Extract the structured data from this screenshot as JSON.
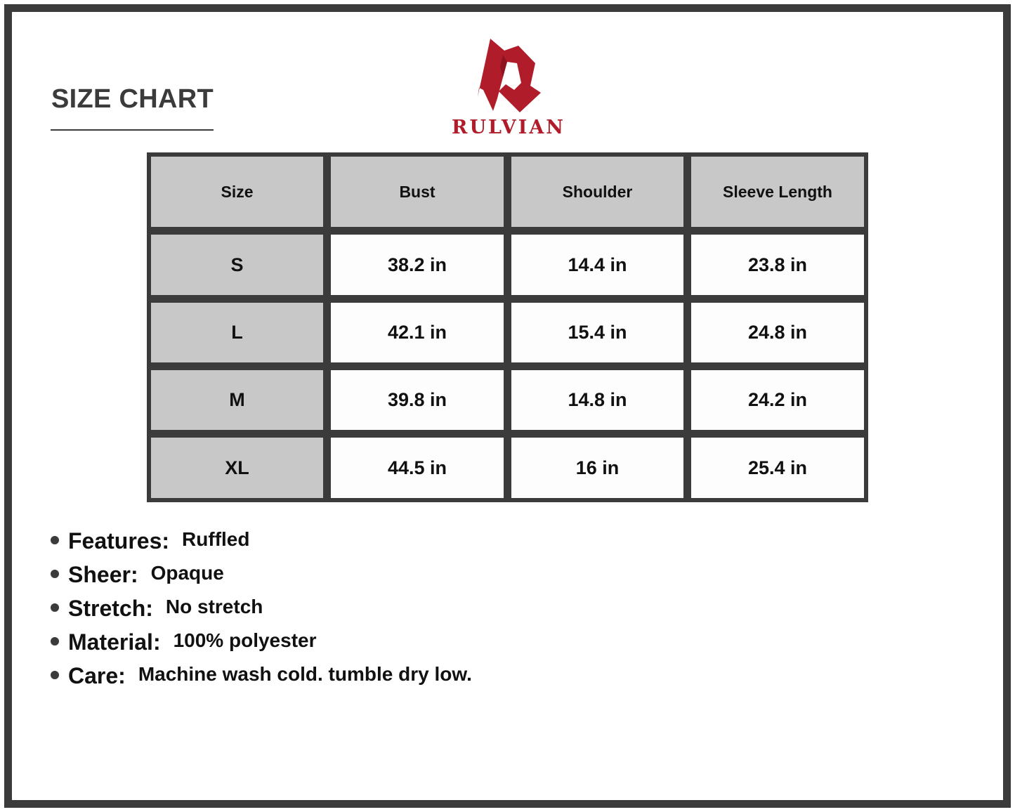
{
  "title": "SIZE CHART",
  "brand": {
    "name": "RULVIAN",
    "color": "#b01c2a"
  },
  "table": {
    "headers": [
      "Size",
      "Bust",
      "Shoulder",
      "Sleeve Length"
    ],
    "rows": [
      [
        "S",
        "38.2 in",
        "14.4 in",
        "23.8 in"
      ],
      [
        "L",
        "42.1 in",
        "15.4 in",
        "24.8 in"
      ],
      [
        "M",
        "39.8 in",
        "14.8 in",
        "24.2 in"
      ],
      [
        "XL",
        "44.5 in",
        "16 in",
        "25.4 in"
      ]
    ]
  },
  "features": [
    {
      "label": "Features:",
      "value": "Ruffled"
    },
    {
      "label": "Sheer:",
      "value": "Opaque"
    },
    {
      "label": "Stretch:",
      "value": "No stretch"
    },
    {
      "label": "Material:",
      "value": "100% polyester"
    },
    {
      "label": "Care:",
      "value": "Machine wash cold. tumble dry low."
    }
  ]
}
